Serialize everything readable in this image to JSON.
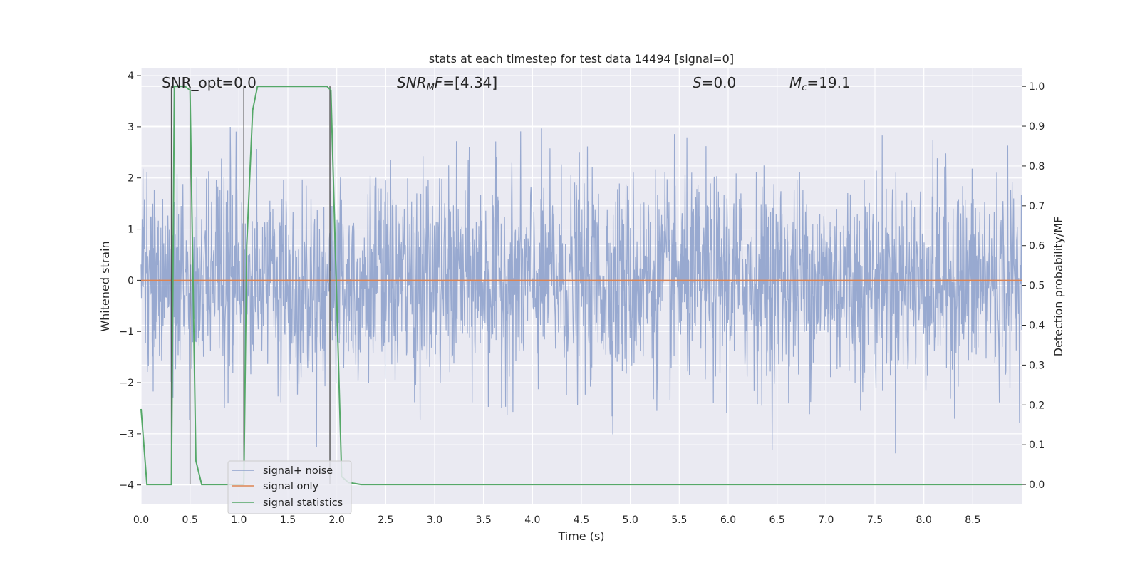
{
  "chart_data": {
    "type": "line",
    "title": "stats at each timestep for test data 14494 [signal=0]",
    "xlabel": "Time (s)",
    "ylabel_left": "Whitened strain",
    "ylabel_right": "Detection probability/MF",
    "xlim": [
      0,
      9.0
    ],
    "ylim_left": [
      -4.38,
      4.14
    ],
    "ylim_right": [
      -0.05,
      1.045
    ],
    "x_ticks": [
      "0.0",
      "0.5",
      "1.0",
      "1.5",
      "2.0",
      "2.5",
      "3.0",
      "3.5",
      "4.0",
      "4.5",
      "5.0",
      "5.5",
      "6.0",
      "6.5",
      "7.0",
      "7.5",
      "8.0",
      "8.5"
    ],
    "y_ticks_left": [
      "−4",
      "−3",
      "−2",
      "−1",
      "0",
      "1",
      "2",
      "3",
      "4"
    ],
    "y_ticks_right": [
      "0.0",
      "0.1",
      "0.2",
      "0.3",
      "0.4",
      "0.5",
      "0.6",
      "0.7",
      "0.8",
      "0.9",
      "1.0"
    ],
    "grid": true,
    "legend_position": "lower-left",
    "annotations": {
      "snr_opt": "SNR_opt=0.0",
      "snr_mf": "=[4.34]",
      "s_value": "=0.0",
      "mc_value": "=19.1"
    },
    "series": [
      {
        "name": "signal+ noise",
        "color": "#8fa2cc",
        "description": "whitened strain noise, roughly Gaussian, amplitude ~±2 with spikes to ±4",
        "x_range": [
          0,
          9.0
        ],
        "values_summary": {
          "min": -4.0,
          "max": 3.75
        }
      },
      {
        "name": "signal only",
        "color": "#dd8452",
        "x": [
          0,
          9.0
        ],
        "values": [
          0,
          0
        ]
      },
      {
        "name": "signal statistics",
        "color": "#55a868",
        "axis": "right",
        "x": [
          0.0,
          0.06,
          0.13,
          0.24,
          0.31,
          0.34,
          0.38,
          0.45,
          0.5,
          0.56,
          0.62,
          1.05,
          1.08,
          1.14,
          1.19,
          1.9,
          1.94,
          2.05,
          2.12,
          2.25,
          9.0
        ],
        "values": [
          0.19,
          0.0,
          0.0,
          0.0,
          0.0,
          1.0,
          1.0,
          1.0,
          0.99,
          0.06,
          0.0,
          0.0,
          0.6,
          0.94,
          1.0,
          1.0,
          0.99,
          0.02,
          0.005,
          0.0,
          0.0
        ]
      }
    ],
    "vertical_lines": {
      "color": "#555555",
      "x": [
        0.31,
        0.5,
        1.05,
        1.93
      ]
    }
  }
}
